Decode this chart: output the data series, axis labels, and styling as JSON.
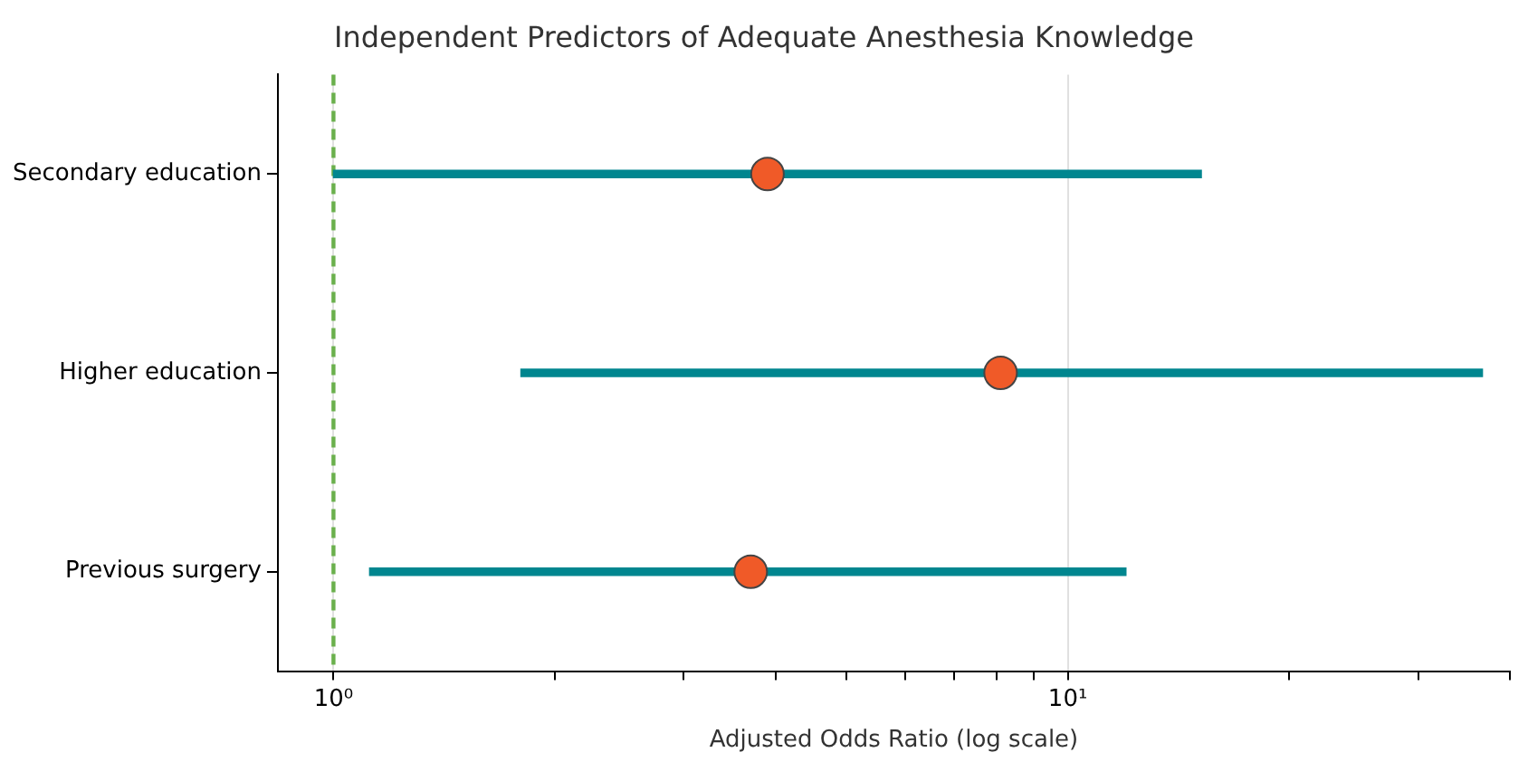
{
  "chart_data": {
    "type": "bar",
    "orientation": "horizontal",
    "title": "Independent Predictors of Adequate Anesthesia Knowledge",
    "xlabel": "Adjusted Odds Ratio (log scale)",
    "categories": [
      "Secondary education",
      "Higher education",
      "Previous surgery"
    ],
    "series": [
      {
        "color": "#00868f",
        "base": [
          1.0,
          1.8,
          1.12
        ],
        "values": [
          14.2,
          34.9,
          10.88
        ]
      },
      {
        "type": "scatter",
        "color": "#f05a28",
        "values": [
          3.9,
          8.1,
          3.7
        ]
      }
    ],
    "log": "x",
    "xlim": [
      0.84,
      40
    ],
    "xticks": [
      {
        "value": 1,
        "label": "10⁰"
      },
      {
        "value": 2,
        "label": null
      },
      {
        "value": 3,
        "label": null
      },
      {
        "value": 4,
        "label": null
      },
      {
        "value": 5,
        "label": null
      },
      {
        "value": 6,
        "label": null
      },
      {
        "value": 7,
        "label": null
      },
      {
        "value": 8,
        "label": null
      },
      {
        "value": 9,
        "label": null
      },
      {
        "value": 10,
        "label": "10¹"
      },
      {
        "value": 20,
        "label": null
      },
      {
        "value": 30,
        "label": null
      },
      {
        "value": 40,
        "label": null
      }
    ],
    "ref_lines": [
      {
        "axis": "x",
        "value": 1,
        "label": null,
        "color": "#6ab04c",
        "line_style": "dashed"
      }
    ],
    "grid": "x",
    "marker": "circle",
    "legend": false
  }
}
